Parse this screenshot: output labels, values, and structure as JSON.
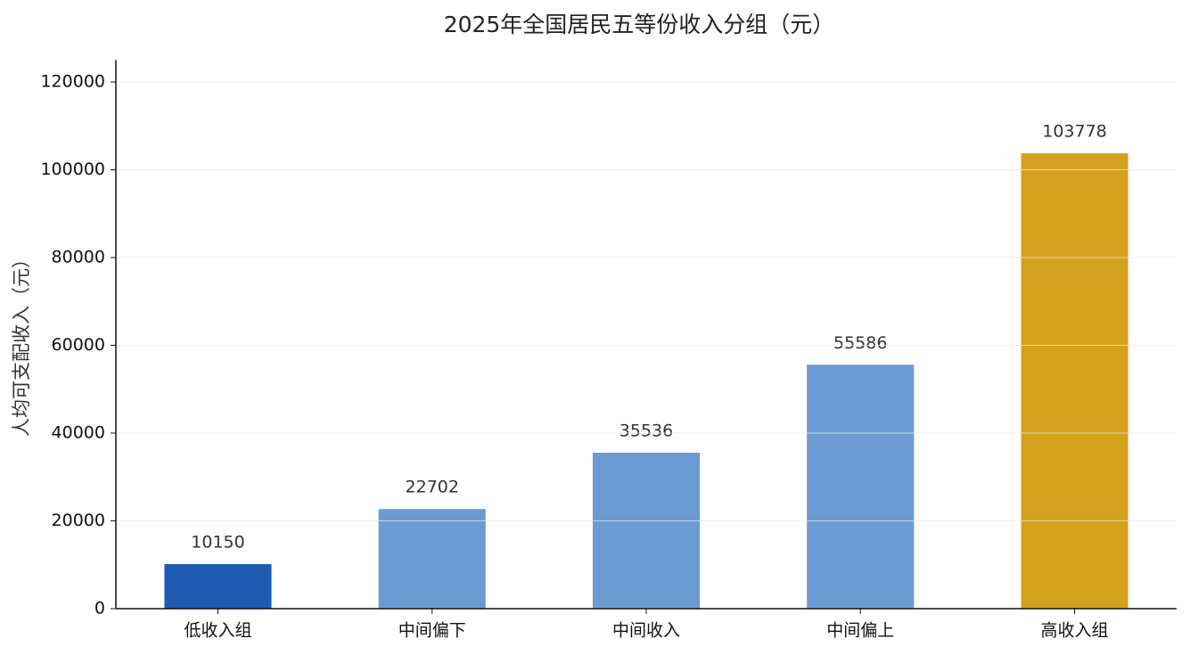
{
  "chart_data": {
    "type": "bar",
    "title": "2025年全国居民五等份收入分组（元）",
    "y_label": "人均可支配收入（元）",
    "categories": [
      "低收入组",
      "中间偏下",
      "中间收入",
      "中间偏上",
      "高收入组"
    ],
    "values": [
      10150,
      22702,
      35536,
      55586,
      103778
    ],
    "colors": [
      "#1f5bb0",
      "#6b9bd2",
      "#6b9bd2",
      "#6b9bd2",
      "#d4a11e"
    ],
    "ylim": [
      0,
      125000
    ],
    "yticks": [
      0,
      20000,
      40000,
      60000,
      80000,
      100000,
      120000
    ],
    "grid": true
  }
}
